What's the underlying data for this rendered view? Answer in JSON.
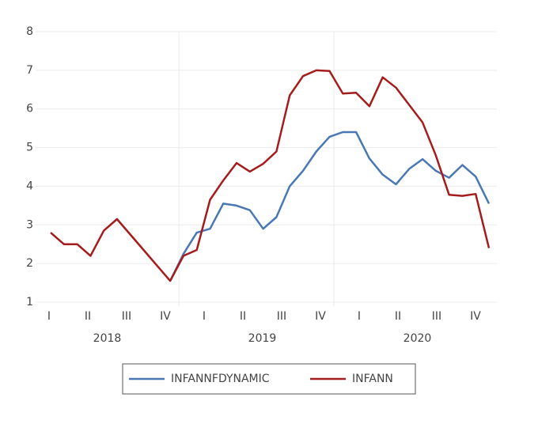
{
  "chart_data": {
    "type": "line",
    "categories": [
      null,
      null,
      null,
      null,
      null,
      null,
      null,
      null,
      null,
      null,
      null,
      null,
      null,
      null,
      null,
      null,
      null,
      null,
      null,
      null,
      null,
      null,
      null,
      null,
      null,
      null,
      null,
      null,
      null,
      null,
      null,
      null,
      null,
      null
    ],
    "quarters": [
      "I",
      "II",
      "III",
      "IV",
      "I",
      "II",
      "III",
      "IV",
      "I",
      "II",
      "III",
      "IV"
    ],
    "years": [
      "2018",
      "2019",
      "2020"
    ],
    "series": [
      {
        "name": "INFANNFDYNAMIC",
        "color": "#4a78b5",
        "values": [
          null,
          null,
          null,
          null,
          null,
          null,
          null,
          null,
          null,
          1.55,
          2.25,
          2.8,
          2.9,
          3.55,
          3.5,
          3.38,
          2.9,
          3.2,
          4.0,
          4.4,
          4.9,
          5.28,
          5.4,
          5.4,
          4.72,
          4.3,
          4.05,
          4.45,
          4.7,
          4.4,
          4.22,
          4.55,
          4.25,
          3.55
        ]
      },
      {
        "name": "INFANN",
        "color": "#a51c1c",
        "values": [
          2.8,
          2.5,
          2.5,
          2.2,
          2.85,
          3.15,
          2.75,
          2.35,
          1.95,
          1.55,
          2.2,
          2.35,
          3.65,
          4.15,
          4.6,
          4.38,
          4.58,
          4.9,
          6.35,
          6.85,
          7.0,
          6.98,
          6.4,
          6.42,
          6.07,
          6.82,
          6.55,
          6.1,
          5.65,
          4.8,
          3.78,
          3.75,
          3.8,
          2.4
        ]
      }
    ],
    "ylim": [
      1,
      8
    ],
    "yticks": [
      1,
      2,
      3,
      4,
      5,
      6,
      7,
      8
    ],
    "grid": true
  }
}
